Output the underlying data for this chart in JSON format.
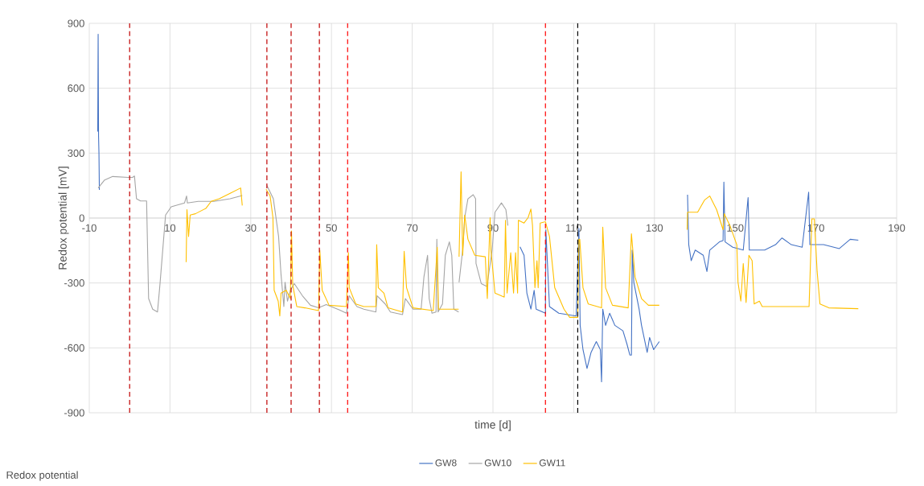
{
  "chart_data": {
    "type": "line",
    "xlabel": "time [d]",
    "ylabel": "Redox potential [mV]",
    "annotations": [
      "Redox potential"
    ],
    "xlim": [
      -10,
      190
    ],
    "xticks": [
      -10,
      10,
      30,
      50,
      70,
      90,
      110,
      130,
      150,
      170,
      190
    ],
    "ylim": [
      -900,
      900
    ],
    "yticks": [
      -900,
      -600,
      -300,
      0,
      300,
      600,
      900
    ],
    "grid": true,
    "legend": "bottom",
    "ref_lines": [
      {
        "axis": "x",
        "value": 0,
        "color": "#c00000",
        "line_style": "dashed"
      },
      {
        "axis": "x",
        "value": 34,
        "color": "#c00000",
        "line_style": "dashed"
      },
      {
        "axis": "x",
        "value": 40,
        "color": "#c00000",
        "line_style": "dashed"
      },
      {
        "axis": "x",
        "value": 47,
        "color": "#c00000",
        "line_style": "dashed"
      },
      {
        "axis": "x",
        "value": 54,
        "color": "#ff0000",
        "line_style": "dashed"
      },
      {
        "axis": "x",
        "value": 103,
        "color": "#ff0000",
        "line_style": "dashed"
      },
      {
        "axis": "x",
        "value": 111,
        "color": "#000000",
        "line_style": "dashed"
      }
    ],
    "series": [
      {
        "name": "GW8",
        "color": "#4472c4",
        "x": [
          -7.9,
          -7.8,
          -7.75,
          -7.7,
          -7.6,
          -7.5,
          50,
          96.7,
          97.7,
          98.4,
          99.4,
          100.2,
          100.7,
          103.0,
          103.1,
          104.0,
          106.3,
          110.6,
          111.3,
          111.6,
          112.3,
          113.3,
          114.3,
          115.6,
          116.6,
          116.9,
          117.2,
          117.9,
          118.9,
          120.2,
          122.2,
          123.2,
          123.9,
          124.3,
          124.5,
          124.9,
          126.2,
          126.8,
          128.2,
          128.8,
          129.8,
          131.2,
          135,
          138.2,
          138.5,
          139.1,
          140.1,
          142.1,
          143.0,
          143.7,
          146.1,
          147.0,
          147.2,
          147.5,
          149.4,
          152.0,
          153.2,
          153.5,
          157.3,
          160.0,
          161.6,
          163.9,
          166.6,
          168.2,
          168.5,
          171.9,
          175.8,
          178.5,
          180.5
        ],
        "values": [
          400,
          850,
          600,
          380,
          300,
          130,
          null,
          -133,
          -172,
          -347,
          -421,
          -334,
          -421,
          -440,
          -54,
          -409,
          -440,
          -453,
          -48,
          -496,
          -608,
          -695,
          -621,
          -571,
          -608,
          -757,
          -421,
          -496,
          -440,
          -496,
          -521,
          -583,
          -633,
          -633,
          -148,
          -298,
          -421,
          -496,
          -621,
          -552,
          -608,
          -571,
          null,
          108,
          -123,
          -197,
          -148,
          -172,
          -247,
          -148,
          -110,
          -104,
          166,
          -110,
          -135,
          -148,
          95,
          -148,
          -148,
          -123,
          -92,
          -123,
          -135,
          120,
          -123,
          -123,
          -141,
          -98,
          -102
        ]
      },
      {
        "name": "GW10",
        "color": "#a5a5a5",
        "x": [
          -7.8,
          -6.2,
          -4.2,
          -0.3,
          0.7,
          1.2,
          1.7,
          2.7,
          4.2,
          4.7,
          5.7,
          6.9,
          7.5,
          8.9,
          10.3,
          13.6,
          14.1,
          14.3,
          17.0,
          20.9,
          24.9,
          27.9,
          31,
          34.0,
          35.6,
          36.9,
          37.5,
          38.2,
          38.5,
          39.1,
          39.8,
          40.8,
          42.8,
          44.8,
          46.8,
          48.7,
          52,
          53.7,
          54.4,
          56.3,
          58.0,
          61.0,
          61.3,
          63.3,
          64.6,
          67.6,
          68.3,
          70.2,
          72.2,
          72.9,
          73.8,
          74.2,
          74.9,
          75.9,
          76.1,
          76.4,
          77.5,
          78.2,
          79.2,
          79.8,
          80.3,
          81.5,
          81.55,
          81.6,
          82.5,
          83.0,
          83.8,
          85.1,
          85.7,
          85.8,
          87.1,
          88.5,
          89.8,
          90.5,
          92.1,
          93.2,
          93.7
        ],
        "values": [
          139,
          176,
          192,
          188,
          188,
          194,
          89,
          79,
          79,
          -372,
          -421,
          -434,
          -309,
          14,
          52,
          70,
          102,
          70,
          77,
          77,
          89,
          104,
          null,
          151,
          89,
          -85,
          -260,
          -409,
          -297,
          -384,
          -334,
          -303,
          -359,
          -403,
          -415,
          -400,
          -425,
          -440,
          -359,
          -409,
          -421,
          -434,
          -359,
          -397,
          -434,
          -446,
          -372,
          -421,
          -421,
          -272,
          -172,
          -372,
          -440,
          -434,
          -98,
          -434,
          -397,
          -172,
          -110,
          -172,
          -421,
          -434,
          null,
          -297,
          -148,
          2,
          89,
          108,
          89,
          -210,
          -303,
          -316,
          -148,
          27,
          70,
          39,
          -35
        ]
      },
      {
        "name": "GW11",
        "color": "#ffc000",
        "x": [
          14.0,
          14.2,
          14.6,
          15.0,
          16.3,
          18.9,
          20.2,
          22.2,
          24.9,
          27.5,
          27.9,
          31,
          33.8,
          34.8,
          35.5,
          35.8,
          36.8,
          37.2,
          37.5,
          38.8,
          39.8,
          40.1,
          40.4,
          41.4,
          43.4,
          46.8,
          47.1,
          47.7,
          49.4,
          53.7,
          54.2,
          54.4,
          56.0,
          58.0,
          61.0,
          61.2,
          61.6,
          63.0,
          64.0,
          67.6,
          68.0,
          68.6,
          70.2,
          75.2,
          76.2,
          76.5,
          81.5,
          81.55,
          81.6,
          82.1,
          82.5,
          83.0,
          83.8,
          85.5,
          88.1,
          88.6,
          89.3,
          89.5,
          90.5,
          92.8,
          93.1,
          93.5,
          94.4,
          95.1,
          95.6,
          96.1,
          96.3,
          97.7,
          98.7,
          99.4,
          99.8,
          100.4,
          100.9,
          101.2,
          101.7,
          103.0,
          104.0,
          105.3,
          107.6,
          109.0,
          111.0,
          111.3,
          111.5,
          112.3,
          113.6,
          116.9,
          117.2,
          117.9,
          119.6,
          123.5,
          124.3,
          125.2,
          126.8,
          128.5,
          131.2,
          135,
          138.1,
          138.2,
          140.7,
          142.4,
          143.7,
          145.4,
          147.0,
          147.3,
          148.7,
          150.4,
          150.7,
          151.4,
          152.0,
          152.7,
          153.4,
          154.2,
          154.7,
          156.0,
          156.7,
          162.0,
          168.3,
          169.0,
          169.6,
          170.3,
          171.0,
          173.2,
          180.5
        ],
        "values": [
          -204,
          39,
          -85,
          14,
          20,
          45,
          77,
          89,
          114,
          139,
          58,
          null,
          133,
          102,
          2,
          -334,
          -384,
          -453,
          -347,
          -334,
          -372,
          -60,
          -309,
          -409,
          -415,
          -428,
          -148,
          -334,
          -403,
          -409,
          -160,
          -322,
          -397,
          -409,
          -409,
          -123,
          -322,
          -347,
          -415,
          -434,
          -154,
          -322,
          -415,
          -428,
          -135,
          -421,
          -421,
          null,
          -179,
          214,
          -172,
          14,
          -98,
          -172,
          -179,
          -372,
          2,
          -148,
          -347,
          -365,
          -10,
          -347,
          -160,
          -347,
          -160,
          -347,
          -10,
          -23,
          2,
          42,
          -35,
          -322,
          -197,
          -322,
          -23,
          -17,
          -85,
          -322,
          -421,
          -459,
          -459,
          -98,
          -98,
          -322,
          -397,
          -415,
          -42,
          -322,
          -403,
          -415,
          -73,
          -272,
          -372,
          -403,
          -403,
          null,
          -54,
          27,
          27,
          83,
          102,
          39,
          -54,
          20,
          -35,
          -123,
          -297,
          -384,
          -210,
          -390,
          -172,
          -197,
          -397,
          -384,
          -409,
          -409,
          -409,
          -4,
          -4,
          -247,
          -397,
          -415,
          -419
        ]
      }
    ]
  }
}
